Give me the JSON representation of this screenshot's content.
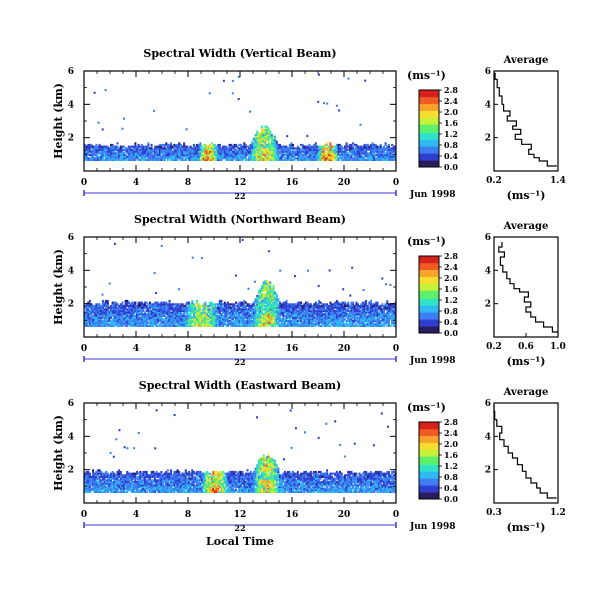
{
  "colors": {
    "scale": [
      "#2a1a60",
      "#2f3fd0",
      "#3f7ef2",
      "#30b8f2",
      "#2fe3c8",
      "#5cf06a",
      "#c6f03a",
      "#f6de2e",
      "#f7a32a",
      "#f05a24",
      "#d8201c"
    ],
    "background": "#ffffff",
    "axis": "#000000",
    "date_axis": "#3b3bd8"
  },
  "chart_data": [
    {
      "type": "heatmap",
      "title": "Spectral Width (Vertical Beam)",
      "ylabel": "Height (km)",
      "xlim": [
        0,
        24
      ],
      "x_ticks": [
        "0",
        "4",
        "8",
        "12",
        "16",
        "20",
        "0"
      ],
      "ylim": [
        0,
        6
      ],
      "y_ticks": [
        "2",
        "4",
        "6"
      ],
      "day_label": "22",
      "date_label": "Jun 1998",
      "colorbar": {
        "unit": "(ms⁻¹)",
        "range": [
          0,
          2.8
        ],
        "ticks": [
          "0.0",
          "0.4",
          "0.8",
          "1.2",
          "1.6",
          "2.0",
          "2.4",
          "2.8"
        ]
      },
      "typical_top_km": 1.5,
      "activity": [
        {
          "x": 13.8,
          "x_span": 2.2,
          "height_km": 2.7,
          "level": 1.6
        },
        {
          "x": 9.5,
          "x_span": 1.5,
          "height_km": 1.2,
          "level": 2.2
        },
        {
          "x": 18.7,
          "x_span": 1.6,
          "height_km": 1.0,
          "level": 2.4
        }
      ],
      "average": {
        "title": "Average",
        "xlabel": "(ms⁻¹)",
        "xlim": [
          0.2,
          1.4
        ],
        "x_ticks": [
          "0.2",
          "1.4"
        ],
        "ylim": [
          0,
          6
        ],
        "y_ticks": [
          "2",
          "4",
          "6"
        ],
        "profile": [
          [
            1.38,
            0.3
          ],
          [
            1.2,
            0.6
          ],
          [
            1.05,
            0.8
          ],
          [
            0.95,
            1.0
          ],
          [
            0.85,
            1.3
          ],
          [
            0.9,
            1.6
          ],
          [
            0.72,
            1.9
          ],
          [
            0.6,
            2.2
          ],
          [
            0.7,
            2.5
          ],
          [
            0.55,
            2.7
          ],
          [
            0.62,
            3.0
          ],
          [
            0.45,
            3.3
          ],
          [
            0.5,
            3.6
          ],
          [
            0.38,
            4.0
          ],
          [
            0.35,
            4.5
          ],
          [
            0.3,
            5.0
          ],
          [
            0.26,
            5.5
          ],
          [
            0.22,
            5.9
          ]
        ]
      }
    },
    {
      "type": "heatmap",
      "title": "Spectral Width (Northward Beam)",
      "ylabel": "Height (km)",
      "xlim": [
        0,
        24
      ],
      "x_ticks": [
        "0",
        "4",
        "8",
        "12",
        "16",
        "20",
        "0"
      ],
      "ylim": [
        0,
        6
      ],
      "y_ticks": [
        "2",
        "4",
        "6"
      ],
      "day_label": "22",
      "date_label": "Jun 1998",
      "colorbar": {
        "unit": "(ms⁻¹)",
        "range": [
          0,
          2.8
        ],
        "ticks": [
          "0.0",
          "0.4",
          "0.8",
          "1.2",
          "1.6",
          "2.0",
          "2.4",
          "2.8"
        ]
      },
      "typical_top_km": 2.0,
      "activity": [
        {
          "x": 14.0,
          "x_span": 2.0,
          "height_km": 3.5,
          "level": 1.6
        },
        {
          "x": 9.0,
          "x_span": 2.5,
          "height_km": 1.0,
          "level": 1.4
        }
      ],
      "average": {
        "title": "Average",
        "xlabel": "(ms⁻¹)",
        "xlim": [
          0.2,
          1.0
        ],
        "x_ticks": [
          "0.2",
          "0.6",
          "1.0"
        ],
        "ylim": [
          0,
          6
        ],
        "y_ticks": [
          "2",
          "4",
          "6"
        ],
        "profile": [
          [
            1.0,
            0.3
          ],
          [
            0.93,
            0.6
          ],
          [
            0.82,
            0.9
          ],
          [
            0.72,
            1.2
          ],
          [
            0.66,
            1.5
          ],
          [
            0.6,
            1.8
          ],
          [
            0.66,
            2.1
          ],
          [
            0.58,
            2.4
          ],
          [
            0.63,
            2.7
          ],
          [
            0.52,
            2.9
          ],
          [
            0.45,
            3.2
          ],
          [
            0.4,
            3.5
          ],
          [
            0.36,
            3.9
          ],
          [
            0.31,
            4.3
          ],
          [
            0.28,
            4.8
          ],
          [
            0.33,
            5.1
          ],
          [
            0.26,
            5.4
          ],
          [
            0.3,
            5.7
          ]
        ]
      }
    },
    {
      "type": "heatmap",
      "title": "Spectral Width (Eastward Beam)",
      "ylabel": "Height (km)",
      "xlim": [
        0,
        24
      ],
      "x_ticks": [
        "0",
        "4",
        "8",
        "12",
        "16",
        "20",
        "0"
      ],
      "ylim": [
        0,
        6
      ],
      "y_ticks": [
        "2",
        "4",
        "6"
      ],
      "day_label": "22",
      "date_label": "Jun 1998",
      "xlabel": "Local Time",
      "colorbar": {
        "unit": "(ms⁻¹)",
        "range": [
          0,
          2.8
        ],
        "ticks": [
          "0.0",
          "0.4",
          "0.8",
          "1.2",
          "1.6",
          "2.0",
          "2.4",
          "2.8"
        ]
      },
      "typical_top_km": 1.8,
      "activity": [
        {
          "x": 14.0,
          "x_span": 2.0,
          "height_km": 3.0,
          "level": 1.8
        },
        {
          "x": 10.0,
          "x_span": 2.0,
          "height_km": 1.0,
          "level": 2.0
        }
      ],
      "average": {
        "title": "Average",
        "xlabel": "(ms⁻¹)",
        "xlim": [
          0.3,
          1.2
        ],
        "x_ticks": [
          "0.3",
          "1.2"
        ],
        "ylim": [
          0,
          6
        ],
        "y_ticks": [
          "2",
          "4",
          "6"
        ],
        "profile": [
          [
            1.18,
            0.3
          ],
          [
            1.05,
            0.6
          ],
          [
            0.95,
            0.9
          ],
          [
            0.9,
            1.2
          ],
          [
            0.82,
            1.5
          ],
          [
            0.75,
            1.9
          ],
          [
            0.7,
            2.3
          ],
          [
            0.63,
            2.7
          ],
          [
            0.56,
            3.0
          ],
          [
            0.5,
            3.4
          ],
          [
            0.44,
            3.8
          ],
          [
            0.38,
            4.2
          ],
          [
            0.41,
            4.6
          ],
          [
            0.34,
            5.0
          ],
          [
            0.31,
            5.5
          ],
          [
            0.3,
            5.9
          ]
        ]
      }
    }
  ]
}
